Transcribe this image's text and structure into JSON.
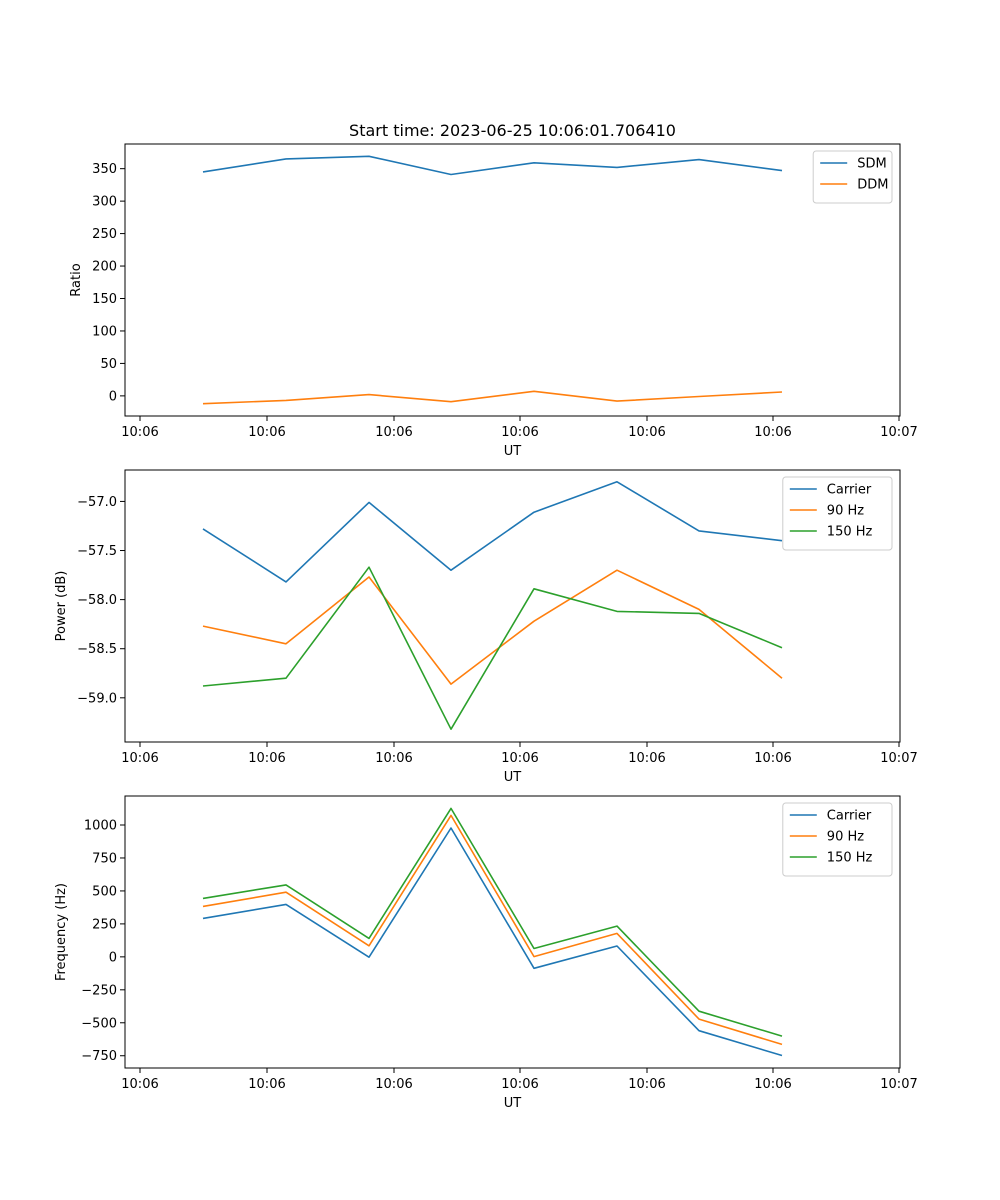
{
  "figure": {
    "title": "Start time: 2023-06-25 10:06:01.706410"
  },
  "chart_data": [
    {
      "type": "line",
      "xlabel": "UT",
      "ylabel": "Ratio",
      "x_ticks": [
        "10:06",
        "10:06",
        "10:06",
        "10:06",
        "10:06",
        "10:06",
        "10:07"
      ],
      "y_ticks": [
        0,
        50,
        100,
        150,
        200,
        250,
        300,
        350
      ],
      "ylim": [
        -31,
        388
      ],
      "legend": "top-right",
      "series": [
        {
          "name": "SDM",
          "color": "#1f77b4",
          "values": [
            345,
            365,
            369,
            341,
            359,
            352,
            364,
            347
          ]
        },
        {
          "name": "DDM",
          "color": "#ff7f0e",
          "values": [
            -12,
            -7,
            2,
            -9,
            7,
            -8,
            -1,
            6
          ]
        }
      ]
    },
    {
      "type": "line",
      "xlabel": "UT",
      "ylabel": "Power (dB)",
      "x_ticks": [
        "10:06",
        "10:06",
        "10:06",
        "10:06",
        "10:06",
        "10:06",
        "10:07"
      ],
      "y_ticks": [
        -59.0,
        -58.5,
        -58.0,
        -57.5,
        -57.0
      ],
      "y_tick_labels": [
        "−59.0",
        "−58.5",
        "−58.0",
        "−57.5",
        "−57.0"
      ],
      "ylim": [
        -59.45,
        -56.68
      ],
      "legend": "top-right",
      "series": [
        {
          "name": "Carrier",
          "color": "#1f77b4",
          "values": [
            -57.28,
            -57.82,
            -57.01,
            -57.7,
            -57.11,
            -56.8,
            -57.3,
            -57.4
          ]
        },
        {
          "name": "90 Hz",
          "color": "#ff7f0e",
          "values": [
            -58.27,
            -58.45,
            -57.77,
            -58.86,
            -58.22,
            -57.7,
            -58.1,
            -58.8
          ]
        },
        {
          "name": "150 Hz",
          "color": "#2ca02c",
          "values": [
            -58.88,
            -58.8,
            -57.67,
            -59.32,
            -57.89,
            -58.12,
            -58.14,
            -58.49
          ]
        }
      ]
    },
    {
      "type": "line",
      "xlabel": "UT",
      "ylabel": "Frequency (Hz)",
      "x_ticks": [
        "10:06",
        "10:06",
        "10:06",
        "10:06",
        "10:06",
        "10:06",
        "10:07"
      ],
      "y_ticks": [
        -750,
        -500,
        -250,
        0,
        250,
        500,
        750,
        1000
      ],
      "y_tick_labels": [
        "−750",
        "−500",
        "−250",
        "0",
        "250",
        "500",
        "750",
        "1000"
      ],
      "ylim": [
        -843,
        1220
      ],
      "legend": "top-right",
      "series": [
        {
          "name": "Carrier",
          "color": "#1f77b4",
          "values": [
            292,
            398,
            -3,
            977,
            -87,
            82,
            -560,
            -748
          ]
        },
        {
          "name": "90 Hz",
          "color": "#ff7f0e",
          "values": [
            383,
            490,
            84,
            1073,
            2,
            178,
            -472,
            -664
          ]
        },
        {
          "name": "150 Hz",
          "color": "#2ca02c",
          "values": [
            443,
            546,
            140,
            1126,
            63,
            233,
            -412,
            -601
          ]
        }
      ]
    }
  ]
}
